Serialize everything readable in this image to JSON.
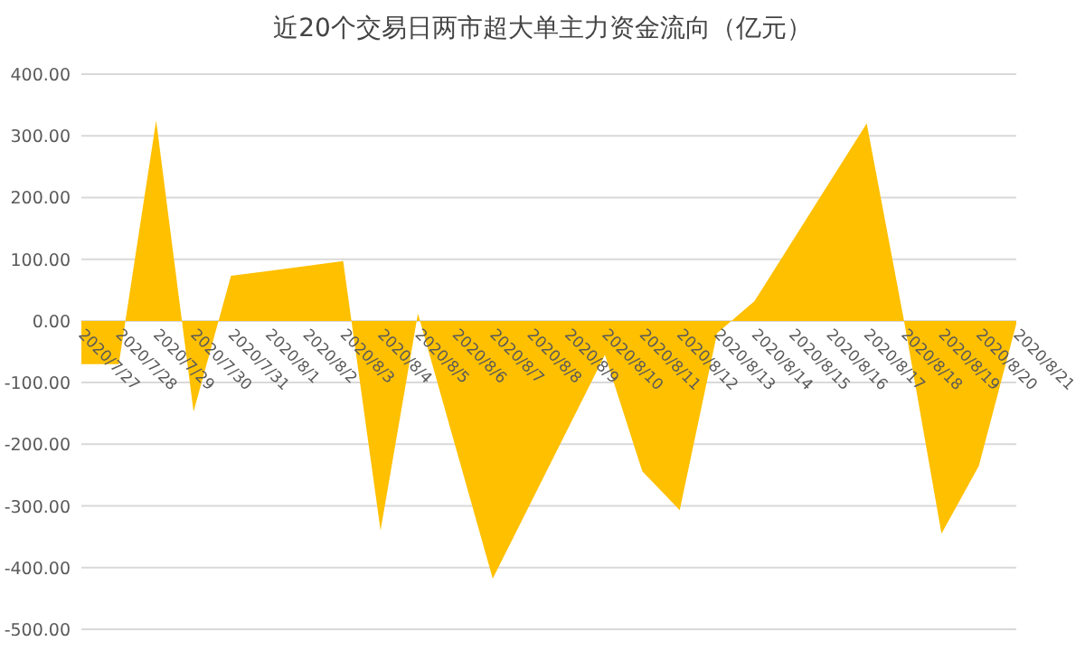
{
  "chart_data": {
    "type": "area",
    "title": "近20个交易日两市超大单主力资金流向（亿元）",
    "categories": [
      "2020/7/27",
      "2020/7/28",
      "2020/7/29",
      "2020/7/30",
      "2020/7/31",
      "2020/8/1",
      "2020/8/2",
      "2020/8/3",
      "2020/8/4",
      "2020/8/5",
      "2020/8/6",
      "2020/8/7",
      "2020/8/8",
      "2020/8/9",
      "2020/8/10",
      "2020/8/11",
      "2020/8/12",
      "2020/8/13",
      "2020/8/14",
      "2020/8/15",
      "2020/8/16",
      "2020/8/17",
      "2020/8/18",
      "2020/8/19",
      "2020/8/20",
      "2020/8/21"
    ],
    "series": [
      {
        "color": "#ffc000",
        "values": [
          -70,
          -70,
          325,
          -147,
          73,
          81,
          89,
          97,
          -340,
          12,
          -203,
          -418,
          -297,
          -176,
          -55,
          -244,
          -307,
          -20,
          32,
          128,
          224,
          320,
          0,
          -345,
          -235,
          -5
        ]
      }
    ],
    "ylim": [
      -500,
      400
    ],
    "yticks": [
      {
        "value": 400,
        "label": "400.00"
      },
      {
        "value": 300,
        "label": "300.00"
      },
      {
        "value": 200,
        "label": "200.00"
      },
      {
        "value": 100,
        "label": "100.00"
      },
      {
        "value": 0,
        "label": "0.00"
      },
      {
        "value": -100,
        "label": "-100.00"
      },
      {
        "value": -200,
        "label": "-200.00"
      },
      {
        "value": -300,
        "label": "-300.00"
      },
      {
        "value": -400,
        "label": "-400.00"
      },
      {
        "value": -500,
        "label": "-500.00"
      }
    ],
    "grid": "y"
  }
}
